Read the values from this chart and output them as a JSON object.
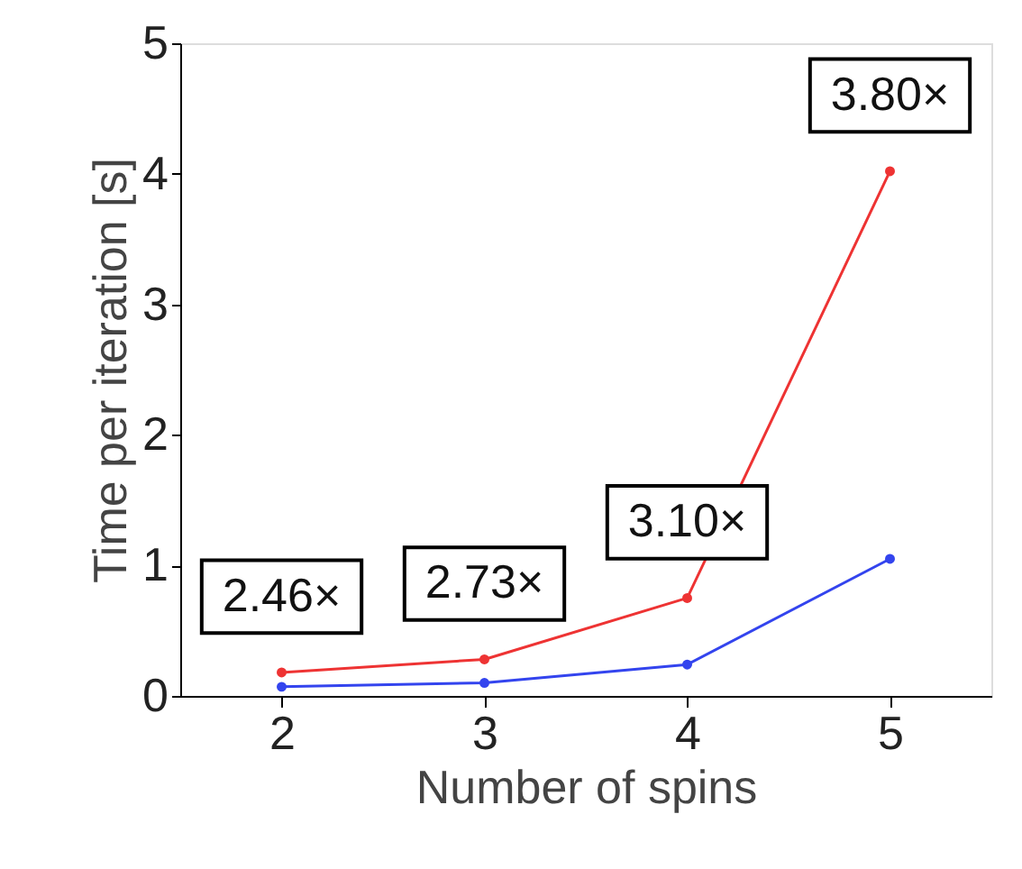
{
  "chart_data": {
    "type": "line",
    "xlabel": "Number of spins",
    "ylabel": "Time per iteration [s]",
    "x": [
      2,
      3,
      4,
      5
    ],
    "xlim": [
      1.5,
      5.5
    ],
    "xticks": [
      2,
      3,
      4,
      5
    ],
    "ylim": [
      0,
      5
    ],
    "yticks": [
      0,
      1,
      2,
      3,
      4,
      5
    ],
    "series": [
      {
        "color": "#ee3333",
        "values": [
          0.18,
          0.28,
          0.75,
          4.02
        ]
      },
      {
        "color": "#3344ee",
        "values": [
          0.07,
          0.1,
          0.24,
          1.05
        ]
      }
    ],
    "annotations": [
      {
        "text": "2.46×",
        "x": 2,
        "y": 0.18
      },
      {
        "text": "2.73×",
        "x": 3,
        "y": 0.28
      },
      {
        "text": "3.10×",
        "x": 4,
        "y": 0.75
      },
      {
        "text": "3.80×",
        "x": 5,
        "y": 4.02
      }
    ],
    "marker": "circle",
    "line_style": "solid",
    "grid": false
  }
}
